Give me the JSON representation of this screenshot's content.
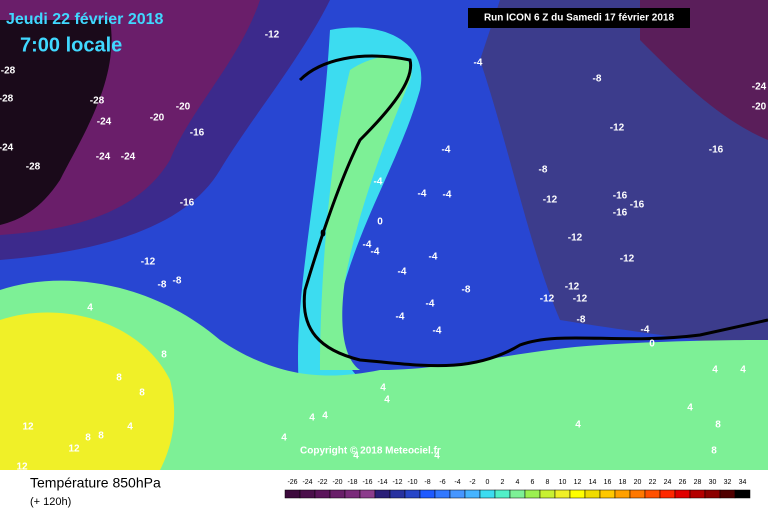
{
  "header": {
    "date": "Jeudi 22 février 2018",
    "time": "7:00 locale",
    "run": "Run ICON 6 Z du Samedi 17 février 2018"
  },
  "map": {
    "copyright": "Copyright © 2018 Meteociel.fr",
    "labels": [
      "-12",
      "-28",
      "-28",
      "-28",
      "-20",
      "-20",
      "-24",
      "-16",
      "-24",
      "-24",
      "-24",
      "-28",
      "-16",
      "-12",
      "-8",
      "-8",
      "-4",
      "-8",
      "-12",
      "-16",
      "-20",
      "-24",
      "-4",
      "-4",
      "-8",
      "-4",
      "-4",
      "0",
      "0",
      "-4",
      "-4",
      "-4",
      "-4",
      "-12",
      "-16",
      "-16",
      "-16",
      "-12",
      "-12",
      "-8",
      "-12",
      "-12",
      "-12",
      "-4",
      "-4",
      "-4",
      "-8",
      "-4",
      "0",
      "4",
      "8",
      "8",
      "4",
      "4",
      "4",
      "4",
      "12",
      "12",
      "8",
      "8",
      "4",
      "4",
      "4",
      "4",
      "4",
      "4",
      "4",
      "4",
      "8",
      "8",
      "12",
      "8"
    ]
  },
  "legend": {
    "title": "Température 850hPa",
    "subtitle": "(+ 120h)",
    "ticks": [
      -26,
      -24,
      -22,
      -20,
      -18,
      -16,
      -14,
      -12,
      -10,
      -8,
      -6,
      -4,
      -2,
      0,
      2,
      4,
      6,
      8,
      10,
      12,
      14,
      16,
      18,
      20,
      22,
      24,
      26,
      28,
      30,
      32,
      34
    ],
    "colors": [
      "#3c0a3c",
      "#4b0f4b",
      "#5a145a",
      "#691e69",
      "#7a2a7a",
      "#8c3c8c",
      "#2a1e78",
      "#2832a0",
      "#2846c8",
      "#1e5aff",
      "#3278ff",
      "#4696ff",
      "#46b4ff",
      "#3cdcf0",
      "#50f0c8",
      "#7df096",
      "#9bf050",
      "#c8f032",
      "#f0f028",
      "#ffff00",
      "#f0dc00",
      "#ffc800",
      "#ffa000",
      "#ff7800",
      "#ff5000",
      "#ff2800",
      "#e10000",
      "#b40000",
      "#8c0000",
      "#500000",
      "#000000"
    ]
  }
}
